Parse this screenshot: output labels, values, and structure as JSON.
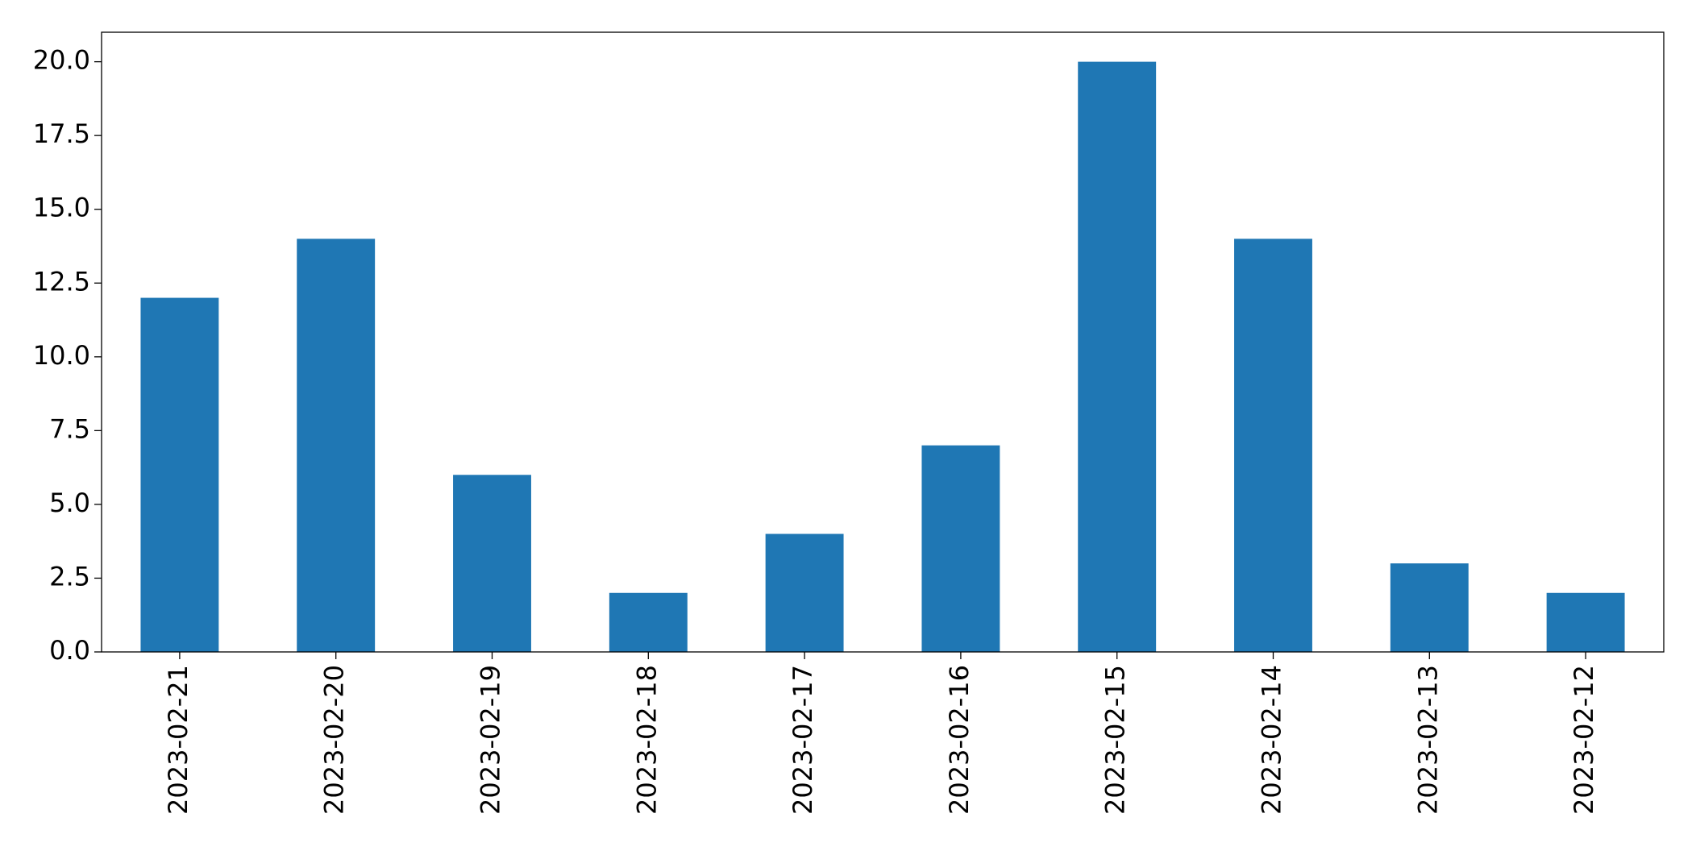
{
  "chart_data": {
    "type": "bar",
    "categories": [
      "2023-02-21",
      "2023-02-20",
      "2023-02-19",
      "2023-02-18",
      "2023-02-17",
      "2023-02-16",
      "2023-02-15",
      "2023-02-14",
      "2023-02-13",
      "2023-02-12"
    ],
    "values": [
      12,
      14,
      6,
      2,
      4,
      7,
      20,
      14,
      3,
      2
    ],
    "color": "#1f77b4",
    "ylim": [
      0,
      21
    ],
    "yticks": [
      {
        "value": 0,
        "label": "0.0"
      },
      2.5,
      {
        "value": 5,
        "label": "5.0"
      },
      7.5,
      {
        "value": 10,
        "label": "10.0"
      },
      12.5,
      {
        "value": 15,
        "label": "15.0"
      },
      17.5,
      {
        "value": 20,
        "label": "20.0"
      }
    ],
    "grid": false
  }
}
